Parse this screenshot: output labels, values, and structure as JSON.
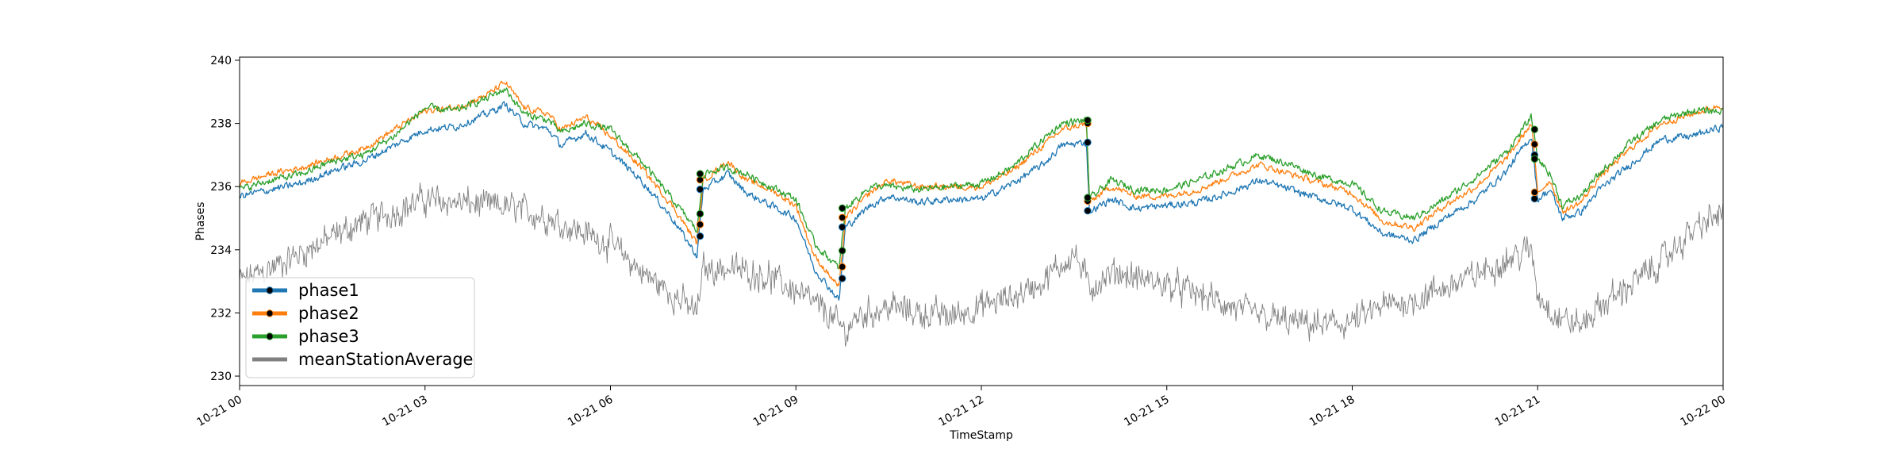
{
  "chart_data": {
    "type": "line",
    "title": "",
    "xlabel": "TimeStamp",
    "ylabel": "Phases",
    "xlim": [
      "10-21 00",
      "10-22 00"
    ],
    "ylim": [
      229.7,
      240.1
    ],
    "x_ticks": [
      "10-21 00",
      "10-21 03",
      "10-21 06",
      "10-21 09",
      "10-21 12",
      "10-21 15",
      "10-21 18",
      "10-21 21",
      "10-22 00"
    ],
    "y_ticks": [
      230,
      232,
      234,
      236,
      238,
      240
    ],
    "x_unit": "hours since 10-21 00",
    "legend": {
      "position": "lower-left"
    },
    "series": [
      {
        "name": "phase1",
        "color": "#1f77b4",
        "marker": "circle (black) at jumps",
        "points": [
          [
            0,
            235.7
          ],
          [
            0.5,
            235.9
          ],
          [
            1,
            236.1
          ],
          [
            1.5,
            236.5
          ],
          [
            2,
            236.8
          ],
          [
            2.5,
            237.3
          ],
          [
            3,
            237.8
          ],
          [
            3.5,
            237.9
          ],
          [
            4,
            238.3
          ],
          [
            4.3,
            238.6
          ],
          [
            4.6,
            238.0
          ],
          [
            5,
            237.8
          ],
          [
            5.2,
            237.3
          ],
          [
            5.6,
            237.7
          ],
          [
            6,
            237.1
          ],
          [
            6.5,
            236.2
          ],
          [
            7,
            235.0
          ],
          [
            7.4,
            233.8
          ],
          [
            7.5,
            235.9
          ],
          [
            7.9,
            236.4
          ],
          [
            8.2,
            235.8
          ],
          [
            8.6,
            235.4
          ],
          [
            9.0,
            235.0
          ],
          [
            9.3,
            233.4
          ],
          [
            9.7,
            232.4
          ],
          [
            9.8,
            234.7
          ],
          [
            10.2,
            235.4
          ],
          [
            10.5,
            235.7
          ],
          [
            11,
            235.5
          ],
          [
            11.5,
            235.6
          ],
          [
            12,
            235.6
          ],
          [
            12.5,
            236.1
          ],
          [
            13,
            236.7
          ],
          [
            13.3,
            237.3
          ],
          [
            13.7,
            237.4
          ],
          [
            13.75,
            235.2
          ],
          [
            14.1,
            235.6
          ],
          [
            14.5,
            235.3
          ],
          [
            15,
            235.4
          ],
          [
            15.5,
            235.5
          ],
          [
            16,
            235.8
          ],
          [
            16.5,
            236.2
          ],
          [
            17,
            235.9
          ],
          [
            17.5,
            235.6
          ],
          [
            18,
            235.3
          ],
          [
            18.5,
            234.5
          ],
          [
            19,
            234.3
          ],
          [
            19.5,
            235.0
          ],
          [
            20,
            235.6
          ],
          [
            20.5,
            236.5
          ],
          [
            20.9,
            237.6
          ],
          [
            21.0,
            235.6
          ],
          [
            21.2,
            235.9
          ],
          [
            21.4,
            235.0
          ],
          [
            21.7,
            235.2
          ],
          [
            22,
            235.9
          ],
          [
            22.5,
            236.7
          ],
          [
            23,
            237.5
          ],
          [
            23.5,
            237.6
          ],
          [
            24,
            237.9
          ]
        ]
      },
      {
        "name": "phase2",
        "color": "#ff7f0e",
        "marker": "circle (black) at jumps",
        "points": [
          [
            0,
            236.1
          ],
          [
            0.5,
            236.4
          ],
          [
            1,
            236.6
          ],
          [
            1.5,
            236.9
          ],
          [
            2,
            237.2
          ],
          [
            2.5,
            237.8
          ],
          [
            3,
            238.4
          ],
          [
            3.5,
            238.5
          ],
          [
            4,
            238.9
          ],
          [
            4.3,
            239.3
          ],
          [
            4.6,
            238.5
          ],
          [
            5,
            238.3
          ],
          [
            5.2,
            237.8
          ],
          [
            5.6,
            238.2
          ],
          [
            6,
            237.6
          ],
          [
            6.5,
            236.6
          ],
          [
            7,
            235.4
          ],
          [
            7.4,
            234.2
          ],
          [
            7.5,
            236.2
          ],
          [
            7.9,
            236.8
          ],
          [
            8.2,
            236.2
          ],
          [
            8.6,
            235.9
          ],
          [
            9.0,
            235.4
          ],
          [
            9.3,
            233.8
          ],
          [
            9.7,
            232.8
          ],
          [
            9.8,
            235.0
          ],
          [
            10.2,
            235.8
          ],
          [
            10.5,
            236.2
          ],
          [
            11,
            236.0
          ],
          [
            11.5,
            236.0
          ],
          [
            12,
            236.0
          ],
          [
            12.5,
            236.5
          ],
          [
            13,
            237.3
          ],
          [
            13.3,
            237.8
          ],
          [
            13.7,
            238.0
          ],
          [
            13.75,
            235.5
          ],
          [
            14.1,
            236.0
          ],
          [
            14.5,
            235.7
          ],
          [
            15,
            235.7
          ],
          [
            15.5,
            235.9
          ],
          [
            16,
            236.3
          ],
          [
            16.5,
            236.7
          ],
          [
            17,
            236.4
          ],
          [
            17.5,
            236.1
          ],
          [
            18,
            235.8
          ],
          [
            18.5,
            234.9
          ],
          [
            19,
            234.7
          ],
          [
            19.5,
            235.4
          ],
          [
            20,
            236.0
          ],
          [
            20.5,
            236.9
          ],
          [
            20.9,
            238.0
          ],
          [
            21.0,
            235.8
          ],
          [
            21.2,
            236.2
          ],
          [
            21.4,
            235.2
          ],
          [
            21.7,
            235.5
          ],
          [
            22,
            236.3
          ],
          [
            22.5,
            237.2
          ],
          [
            23,
            238.0
          ],
          [
            23.5,
            238.3
          ],
          [
            24,
            238.6
          ]
        ]
      },
      {
        "name": "phase3",
        "color": "#2ca02c",
        "marker": "circle (black) at jumps",
        "points": [
          [
            0,
            235.9
          ],
          [
            0.5,
            236.2
          ],
          [
            1,
            236.4
          ],
          [
            1.5,
            236.8
          ],
          [
            2,
            237.0
          ],
          [
            2.5,
            237.6
          ],
          [
            3,
            238.5
          ],
          [
            3.5,
            238.4
          ],
          [
            4,
            238.8
          ],
          [
            4.3,
            239.1
          ],
          [
            4.6,
            238.3
          ],
          [
            5,
            238.1
          ],
          [
            5.2,
            237.7
          ],
          [
            5.6,
            238.0
          ],
          [
            6,
            237.8
          ],
          [
            6.5,
            236.8
          ],
          [
            7,
            235.6
          ],
          [
            7.4,
            234.6
          ],
          [
            7.5,
            236.4
          ],
          [
            7.9,
            236.6
          ],
          [
            8.2,
            236.4
          ],
          [
            8.6,
            236.0
          ],
          [
            9.0,
            235.6
          ],
          [
            9.3,
            234.2
          ],
          [
            9.7,
            233.4
          ],
          [
            9.8,
            235.3
          ],
          [
            10.2,
            236.0
          ],
          [
            10.5,
            236.0
          ],
          [
            11,
            235.9
          ],
          [
            11.5,
            236.0
          ],
          [
            12,
            236.1
          ],
          [
            12.5,
            236.6
          ],
          [
            13,
            237.5
          ],
          [
            13.3,
            238.0
          ],
          [
            13.7,
            238.1
          ],
          [
            13.75,
            235.6
          ],
          [
            14.1,
            236.2
          ],
          [
            14.5,
            235.9
          ],
          [
            15,
            235.9
          ],
          [
            15.5,
            236.2
          ],
          [
            16,
            236.6
          ],
          [
            16.5,
            237.0
          ],
          [
            17,
            236.7
          ],
          [
            17.5,
            236.3
          ],
          [
            18,
            236.1
          ],
          [
            18.5,
            235.2
          ],
          [
            19,
            235.0
          ],
          [
            19.5,
            235.6
          ],
          [
            20,
            236.3
          ],
          [
            20.5,
            237.1
          ],
          [
            20.9,
            238.2
          ],
          [
            21.0,
            236.9
          ],
          [
            21.2,
            236.4
          ],
          [
            21.4,
            235.4
          ],
          [
            21.7,
            235.7
          ],
          [
            22,
            236.4
          ],
          [
            22.5,
            237.4
          ],
          [
            23,
            238.1
          ],
          [
            23.5,
            238.4
          ],
          [
            24,
            238.4
          ]
        ]
      },
      {
        "name": "meanStationAverage",
        "color": "#808080",
        "points": [
          [
            0,
            233.0
          ],
          [
            0.5,
            233.4
          ],
          [
            1,
            233.9
          ],
          [
            1.5,
            234.4
          ],
          [
            2,
            234.9
          ],
          [
            2.5,
            235.2
          ],
          [
            3,
            235.6
          ],
          [
            3.5,
            235.5
          ],
          [
            4,
            235.4
          ],
          [
            4.5,
            235.3
          ],
          [
            5,
            235.0
          ],
          [
            5.5,
            234.6
          ],
          [
            6,
            234.2
          ],
          [
            6.5,
            233.3
          ],
          [
            7,
            232.6
          ],
          [
            7.4,
            232.0
          ],
          [
            7.5,
            233.4
          ],
          [
            8,
            233.4
          ],
          [
            8.5,
            233.2
          ],
          [
            9,
            232.7
          ],
          [
            9.5,
            232.0
          ],
          [
            9.8,
            231.4
          ],
          [
            10,
            231.9
          ],
          [
            10.5,
            232.2
          ],
          [
            11,
            232.0
          ],
          [
            11.5,
            231.9
          ],
          [
            12,
            232.2
          ],
          [
            12.5,
            232.5
          ],
          [
            13,
            233.0
          ],
          [
            13.5,
            233.9
          ],
          [
            13.75,
            232.8
          ],
          [
            14.2,
            233.3
          ],
          [
            14.5,
            233.1
          ],
          [
            15,
            232.9
          ],
          [
            15.5,
            232.6
          ],
          [
            16,
            232.2
          ],
          [
            16.5,
            231.9
          ],
          [
            17,
            231.7
          ],
          [
            17.5,
            231.6
          ],
          [
            18,
            231.7
          ],
          [
            18.5,
            232.2
          ],
          [
            19,
            232.4
          ],
          [
            19.5,
            232.8
          ],
          [
            20,
            233.2
          ],
          [
            20.5,
            233.7
          ],
          [
            20.9,
            234.0
          ],
          [
            21.0,
            232.6
          ],
          [
            21.3,
            231.9
          ],
          [
            21.7,
            231.6
          ],
          [
            22,
            232.2
          ],
          [
            22.5,
            232.9
          ],
          [
            23,
            233.6
          ],
          [
            23.5,
            234.6
          ],
          [
            24,
            235.2
          ]
        ]
      }
    ],
    "jump_markers_hours": [
      7.45,
      9.75,
      13.72,
      20.95
    ]
  }
}
